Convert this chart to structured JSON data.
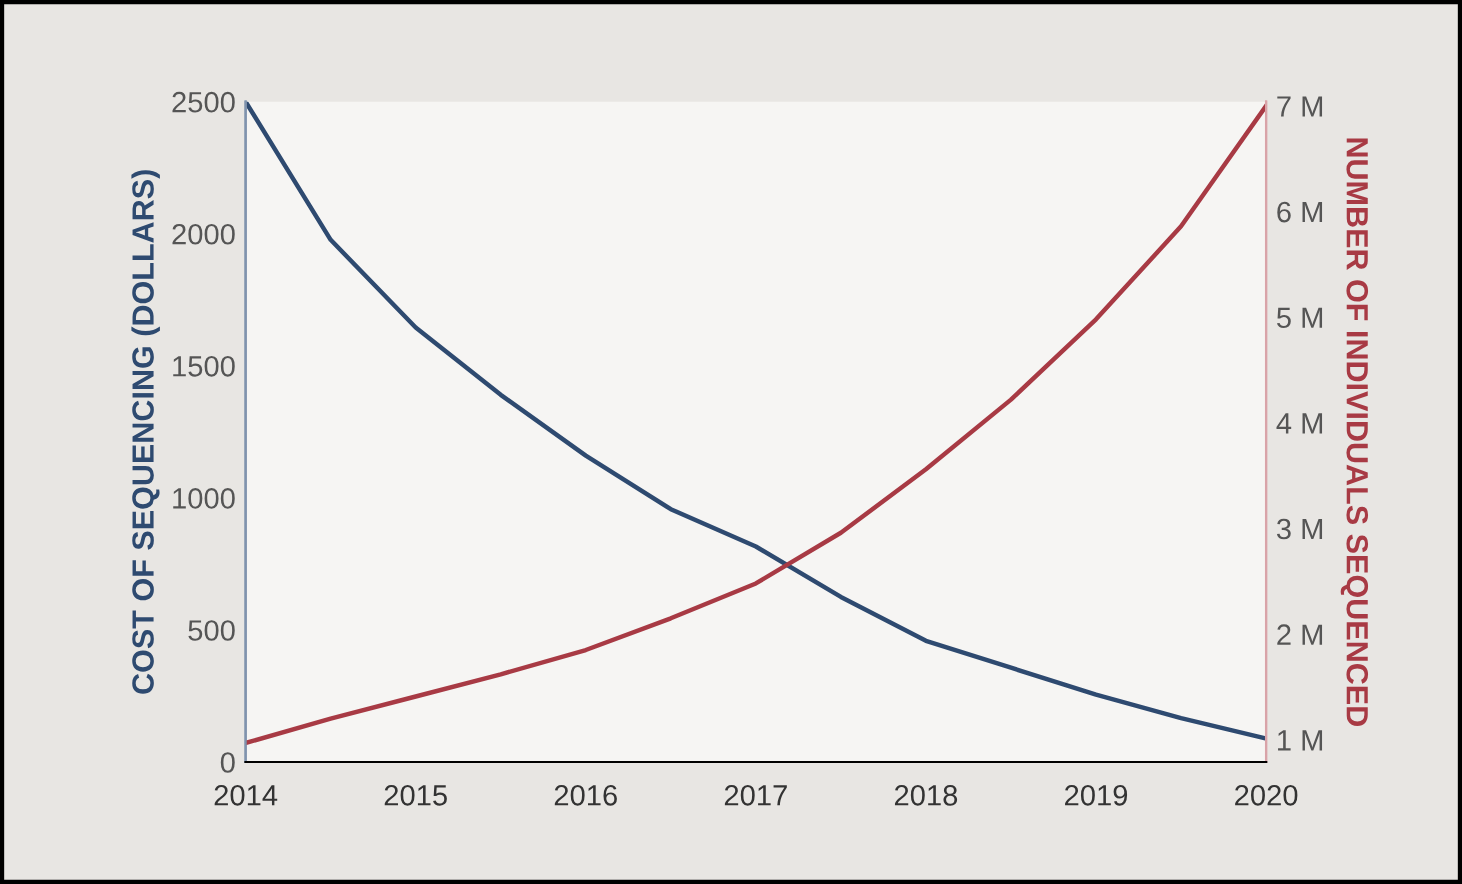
{
  "chart_data": {
    "type": "line",
    "x": [
      2014,
      2014.5,
      2015,
      2015.5,
      2016,
      2016.5,
      2017,
      2017.5,
      2018,
      2018.5,
      2019,
      2019.5,
      2020
    ],
    "series": [
      {
        "color": "#2e4a70",
        "values": [
          2500,
          1977,
          1645,
          1390,
          1160,
          957,
          816,
          625,
          459,
          357,
          255,
          166,
          89
        ]
      },
      {
        "color": "#a83a44",
        "axis": "y2",
        "values": [
          0.97,
          1.2,
          1.41,
          1.62,
          1.85,
          2.15,
          2.48,
          2.96,
          3.56,
          4.22,
          4.98,
          5.86,
          7.0
        ]
      }
    ],
    "xlim": [
      2014,
      2020
    ],
    "xticks": [
      2014,
      2015,
      2016,
      2017,
      2018,
      2019,
      2020
    ],
    "ylim": [
      0,
      2500
    ],
    "yticks": [
      0,
      500,
      1000,
      1500,
      2000,
      2500
    ],
    "y2lim": [
      0.79,
      7.04
    ],
    "y2ticks": [
      {
        "value": 1,
        "label": "1 M"
      },
      {
        "value": 2,
        "label": "2 M"
      },
      {
        "value": 3,
        "label": "3 M"
      },
      {
        "value": 4,
        "label": "4 M"
      },
      {
        "value": 5,
        "label": "5 M"
      },
      {
        "value": 6,
        "label": "6 M"
      },
      {
        "value": 7,
        "label": "7 M"
      }
    ],
    "ylabel": "COST OF SEQUENCING (DOLLARS)",
    "y2label": "NUMBER OF INDIVIDUALS SEQUENCED",
    "grid": false,
    "legend": false
  }
}
